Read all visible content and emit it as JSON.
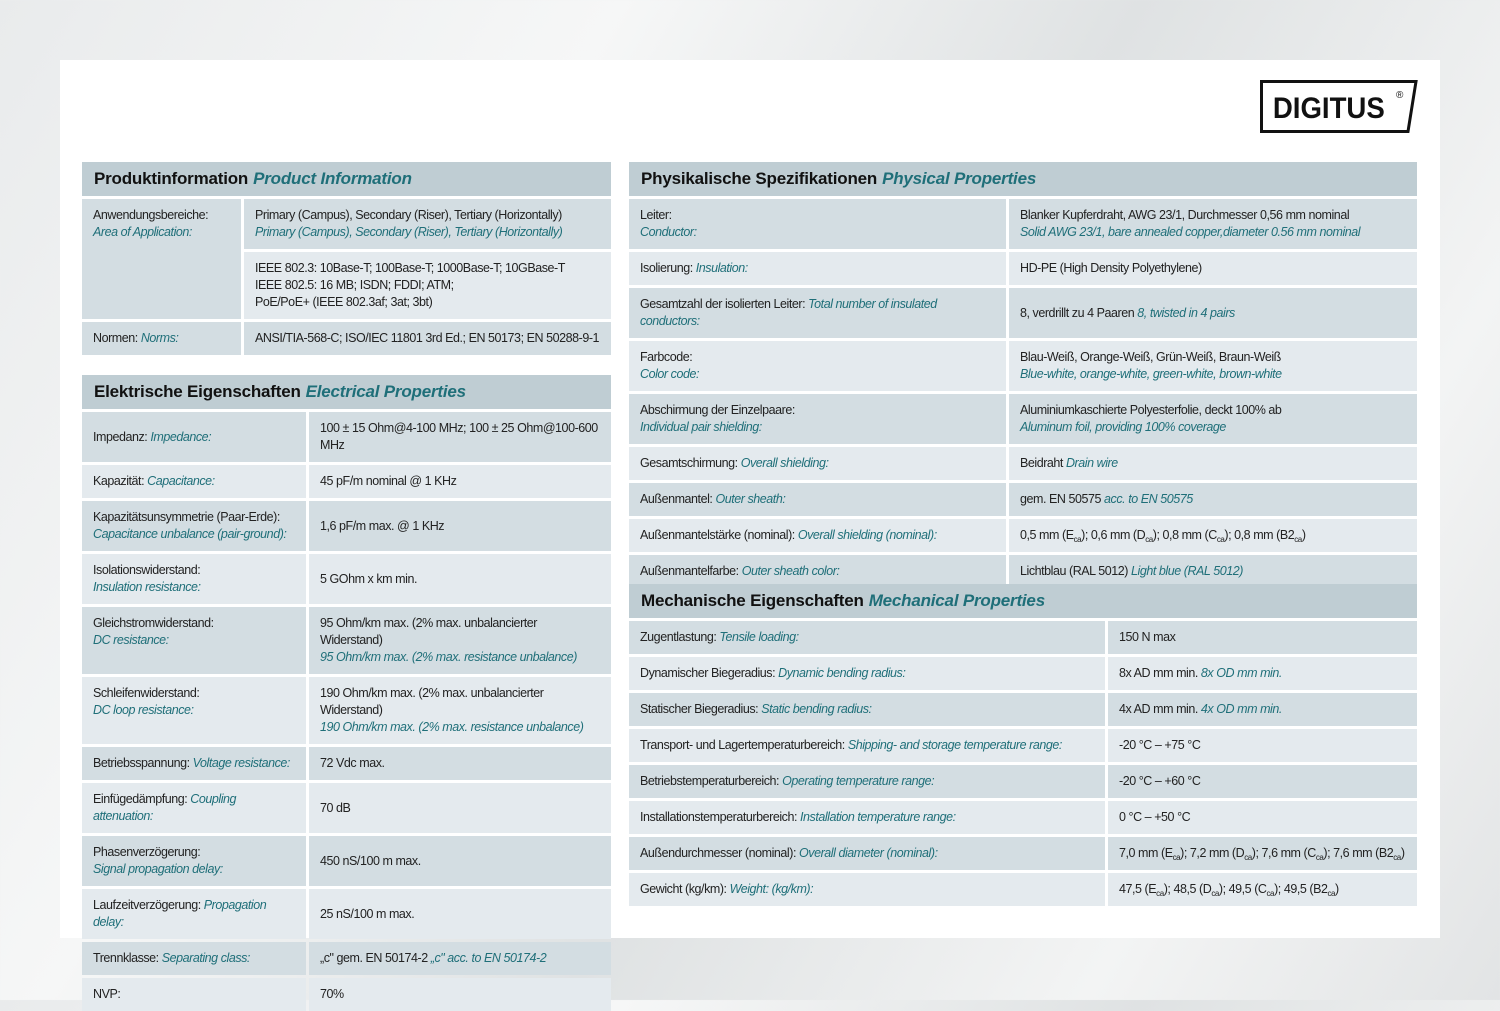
{
  "brand": "DIGITUS",
  "colors": {
    "accent": "#1f6f79",
    "header_bg": "#bfcdd3",
    "row_dark": "#d3dde2",
    "row_light": "#e4eaee"
  },
  "sections": [
    {
      "id": "product-information",
      "title_de": "Produktinformation",
      "title_en": "Product Information",
      "rows": [
        {
          "label": [
            {
              "t": "Anwendungsbereiche:"
            },
            {
              "br": 1
            },
            {
              "en": "Area of Application:"
            }
          ],
          "value": [
            {
              "t": "Primary (Campus), Secondary (Riser), Tertiary (Horizontally)"
            },
            {
              "br": 1
            },
            {
              "en": "Primary (Campus), Secondary (Riser), Tertiary (Horizontally)"
            }
          ],
          "span": 2
        },
        {
          "value": [
            {
              "t": "IEEE 802.3: 10Base-T; 100Base-T; 1000Base-T; 10GBase-T"
            },
            {
              "br": 1
            },
            {
              "t": "IEEE 802.5: 16 MB; ISDN; FDDI; ATM;"
            },
            {
              "br": 1
            },
            {
              "t": "PoE/PoE+ (IEEE 802.3af; 3at; 3bt)"
            }
          ]
        },
        {
          "label": [
            {
              "t": "Normen: "
            },
            {
              "en": "Norms:"
            }
          ],
          "value": [
            {
              "t": "ANSI/TIA-568-C; ISO/IEC 11801 3rd Ed.; EN 50173; EN 50288-9-1"
            }
          ]
        }
      ]
    },
    {
      "id": "electrical-properties",
      "title_de": "Elektrische Eigenschaften",
      "title_en": "Electrical Properties",
      "rows": [
        {
          "label": [
            {
              "t": "Impedanz: "
            },
            {
              "en": "Impedance:"
            }
          ],
          "value": [
            {
              "t": "100 ± 15 Ohm@4-100 MHz; 100 ± 25 Ohm@100-600 MHz"
            }
          ]
        },
        {
          "label": [
            {
              "t": "Kapazität: "
            },
            {
              "en": "Capacitance:"
            }
          ],
          "value": [
            {
              "t": "45 pF/m nominal @ 1 KHz"
            }
          ]
        },
        {
          "label": [
            {
              "t": "Kapazitätsunsymmetrie (Paar-Erde):"
            },
            {
              "br": 1
            },
            {
              "en": "Capacitance unbalance (pair-ground):"
            }
          ],
          "value": [
            {
              "t": "1,6 pF/m max. @ 1 KHz"
            }
          ]
        },
        {
          "label": [
            {
              "t": "Isolationswiderstand:"
            },
            {
              "br": 1
            },
            {
              "en": "Insulation resistance:"
            }
          ],
          "value": [
            {
              "t": "5 GOhm x km min."
            }
          ]
        },
        {
          "label": [
            {
              "t": "Gleichstromwiderstand:"
            },
            {
              "br": 1
            },
            {
              "en": "DC resistance:"
            }
          ],
          "value": [
            {
              "t": "95 Ohm/km max. (2% max. unbalancierter Widerstand)"
            },
            {
              "br": 1
            },
            {
              "en": "95 Ohm/km max. (2% max. resistance unbalance)"
            }
          ]
        },
        {
          "label": [
            {
              "t": "Schleifenwiderstand:"
            },
            {
              "br": 1
            },
            {
              "en": "DC loop resistance:"
            }
          ],
          "value": [
            {
              "t": "190 Ohm/km max. (2% max. unbalancierter Widerstand)"
            },
            {
              "br": 1
            },
            {
              "en": "190 Ohm/km max. (2% max. resistance unbalance)"
            }
          ]
        },
        {
          "label": [
            {
              "t": "Betriebsspannung: "
            },
            {
              "en": "Voltage resistance:"
            }
          ],
          "value": [
            {
              "t": "72 Vdc max."
            }
          ]
        },
        {
          "label": [
            {
              "t": "Einfügedämpfung: "
            },
            {
              "en": "Coupling attenuation:"
            }
          ],
          "value": [
            {
              "t": "70 dB"
            }
          ]
        },
        {
          "label": [
            {
              "t": "Phasenverzögerung:"
            },
            {
              "br": 1
            },
            {
              "en": "Signal propagation delay:"
            }
          ],
          "value": [
            {
              "t": "450 nS/100 m max."
            }
          ]
        },
        {
          "label": [
            {
              "t": "Laufzeitverzögerung: "
            },
            {
              "en": "Propagation delay:"
            }
          ],
          "value": [
            {
              "t": "25 nS/100 m max."
            }
          ]
        },
        {
          "label": [
            {
              "t": "Trennklasse: "
            },
            {
              "en": "Separating class:"
            }
          ],
          "value": [
            {
              "t": "„c\" gem. EN 50174-2 "
            },
            {
              "en": "„c\" acc. to EN 50174-2"
            }
          ]
        },
        {
          "label": [
            {
              "t": "NVP:"
            }
          ],
          "value": [
            {
              "t": "70%"
            }
          ]
        }
      ]
    },
    {
      "id": "physical-properties",
      "title_de": "Physikalische Spezifikationen",
      "title_en": "Physical Properties",
      "rows": [
        {
          "label": [
            {
              "t": "Leiter:"
            },
            {
              "br": 1
            },
            {
              "en": "Conductor:"
            }
          ],
          "value": [
            {
              "t": "Blanker Kupferdraht, AWG 23/1, Durchmesser 0,56 mm nominal"
            },
            {
              "br": 1
            },
            {
              "en": "Solid AWG 23/1, bare annealed copper,diameter 0.56 mm nominal"
            }
          ]
        },
        {
          "label": [
            {
              "t": "Isolierung: "
            },
            {
              "en": "Insulation:"
            }
          ],
          "value": [
            {
              "t": "HD-PE (High Density Polyethylene)"
            }
          ]
        },
        {
          "label": [
            {
              "t": "Gesamtzahl der isolierten Leiter: "
            },
            {
              "en": "Total number of insulated conductors:"
            }
          ],
          "value": [
            {
              "t": "8, verdrillt zu 4 Paaren "
            },
            {
              "en": "8, twisted in 4 pairs"
            }
          ]
        },
        {
          "label": [
            {
              "t": "Farbcode:"
            },
            {
              "br": 1
            },
            {
              "en": "Color code:"
            }
          ],
          "value": [
            {
              "t": "Blau-Weiß, Orange-Weiß, Grün-Weiß, Braun-Weiß"
            },
            {
              "br": 1
            },
            {
              "en": "Blue-white, orange-white, green-white, brown-white"
            }
          ]
        },
        {
          "label": [
            {
              "t": "Abschirmung der Einzelpaare:"
            },
            {
              "br": 1
            },
            {
              "en": "Individual pair shielding:"
            }
          ],
          "value": [
            {
              "t": "Aluminiumkaschierte Polyesterfolie, deckt 100% ab"
            },
            {
              "br": 1
            },
            {
              "en": "Aluminum foil, providing 100% coverage"
            }
          ]
        },
        {
          "label": [
            {
              "t": "Gesamtschirmung: "
            },
            {
              "en": "Overall shielding:"
            }
          ],
          "value": [
            {
              "t": "Beidraht "
            },
            {
              "en": "Drain wire"
            }
          ]
        },
        {
          "label": [
            {
              "t": "Außenmantel: "
            },
            {
              "en": "Outer sheath:"
            }
          ],
          "value": [
            {
              "t": "gem. EN 50575 "
            },
            {
              "en": "acc. to EN 50575"
            }
          ]
        },
        {
          "label": [
            {
              "t": "Außenmantelstärke (nominal): "
            },
            {
              "en": "Overall shielding (nominal):"
            }
          ],
          "value": [
            {
              "t": "0,5 mm (E"
            },
            {
              "sub": "ca"
            },
            {
              "t": "); 0,6 mm (D"
            },
            {
              "sub": "ca"
            },
            {
              "t": "); 0,8 mm (C"
            },
            {
              "sub": "ca"
            },
            {
              "t": "); 0,8 mm (B2"
            },
            {
              "sub": "ca"
            },
            {
              "t": ")"
            }
          ]
        },
        {
          "label": [
            {
              "t": "Außenmantelfarbe: "
            },
            {
              "en": "Outer sheath color:"
            }
          ],
          "value": [
            {
              "t": "Lichtblau (RAL 5012) "
            },
            {
              "en": "Light blue (RAL 5012)"
            }
          ]
        }
      ]
    },
    {
      "id": "mechanical-properties",
      "title_de": "Mechanische Eigenschaften",
      "title_en": "Mechanical Properties",
      "rows": [
        {
          "label": [
            {
              "t": "Zugentlastung: "
            },
            {
              "en": "Tensile loading:"
            }
          ],
          "value": [
            {
              "t": "150 N max"
            }
          ]
        },
        {
          "label": [
            {
              "t": "Dynamischer Biegeradius: "
            },
            {
              "en": "Dynamic bending radius:"
            }
          ],
          "value": [
            {
              "t": "8x AD mm min. "
            },
            {
              "en": "8x OD mm min."
            }
          ]
        },
        {
          "label": [
            {
              "t": "Statischer Biegeradius: "
            },
            {
              "en": "Static bending radius:"
            }
          ],
          "value": [
            {
              "t": "4x AD mm min. "
            },
            {
              "en": "4x OD mm min."
            }
          ]
        },
        {
          "label": [
            {
              "t": "Transport- und Lagertemperaturbereich: "
            },
            {
              "en": "Shipping- and storage temperature range:"
            }
          ],
          "value": [
            {
              "t": "-20 °C – +75 °C"
            }
          ]
        },
        {
          "label": [
            {
              "t": "Betriebstemperaturbereich: "
            },
            {
              "en": "Operating temperature range:"
            }
          ],
          "value": [
            {
              "t": "-20 °C – +60 °C"
            }
          ]
        },
        {
          "label": [
            {
              "t": "Installationstemperaturbereich: "
            },
            {
              "en": "Installation temperature range:"
            }
          ],
          "value": [
            {
              "t": "0 °C – +50 °C"
            }
          ]
        },
        {
          "label": [
            {
              "t": "Außendurchmesser (nominal): "
            },
            {
              "en": "Overall diameter (nominal):"
            }
          ],
          "value": [
            {
              "t": "7,0 mm (E"
            },
            {
              "sub": "ca"
            },
            {
              "t": "); 7,2 mm (D"
            },
            {
              "sub": "ca"
            },
            {
              "t": "); 7,6 mm (C"
            },
            {
              "sub": "ca"
            },
            {
              "t": "); 7,6 mm (B2"
            },
            {
              "sub": "ca"
            },
            {
              "t": ")"
            }
          ]
        },
        {
          "label": [
            {
              "t": "Gewicht (kg/km): "
            },
            {
              "en": "Weight: (kg/km):"
            }
          ],
          "value": [
            {
              "t": "47,5 (E"
            },
            {
              "sub": "ca"
            },
            {
              "t": "); 48,5 (D"
            },
            {
              "sub": "ca"
            },
            {
              "t": "); 49,5 (C"
            },
            {
              "sub": "ca"
            },
            {
              "t": "); 49,5 (B2"
            },
            {
              "sub": "ca"
            },
            {
              "t": ")"
            }
          ]
        }
      ]
    }
  ]
}
